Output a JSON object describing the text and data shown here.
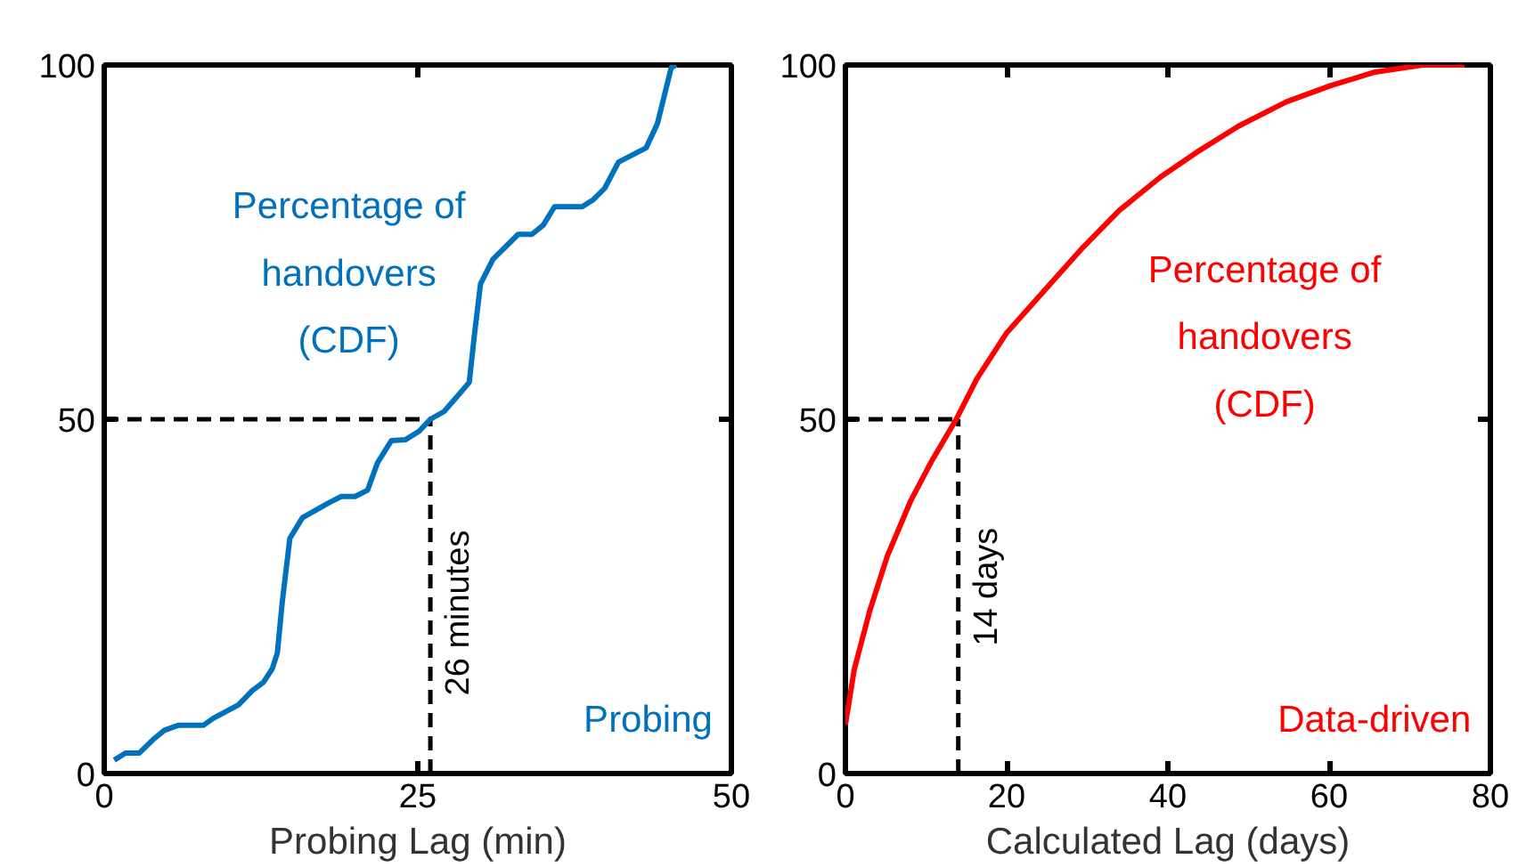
{
  "chart_data": [
    {
      "type": "line",
      "xlabel": "Probing Lag (min)",
      "xlim": [
        0,
        50
      ],
      "xticks": [
        0,
        25,
        50
      ],
      "ylim": [
        0,
        100
      ],
      "yticks": [
        0,
        50,
        100
      ],
      "series": [
        {
          "name": "Percentage of handovers (CDF)",
          "color": "#0072bd",
          "x": [
            0.8,
            1.7,
            2.8,
            3.9,
            4.8,
            5.9,
            7.9,
            8.7,
            10.7,
            11.8,
            12.7,
            13.4,
            13.8,
            14.2,
            14.8,
            15.8,
            16.9,
            18,
            18.9,
            20,
            21,
            21.8,
            22.9,
            24,
            25.1,
            26,
            27.1,
            29.1,
            29.5,
            30,
            31,
            33,
            34.1,
            35,
            35.9,
            38.1,
            39,
            39.9,
            41,
            43.2,
            44.1,
            45.2,
            45.6
          ],
          "values": [
            1.9,
            2.9,
            2.9,
            4.8,
            6.1,
            6.8,
            6.8,
            7.8,
            9.7,
            11.7,
            12.9,
            14.8,
            17,
            24.3,
            33.2,
            36.1,
            37.2,
            38.3,
            39.1,
            39.1,
            40,
            43.9,
            47,
            47.1,
            48.3,
            50,
            51.1,
            55.2,
            61.7,
            69.1,
            72.6,
            76.1,
            76.1,
            77.4,
            80,
            80,
            81,
            82.6,
            86.3,
            88.3,
            91.7,
            99.6,
            100
          ]
        }
      ],
      "annotations": [
        "Probing"
      ],
      "ref_lines": [
        {
          "axis": "y",
          "value": 50,
          "label": null,
          "color": "#000000",
          "line_style": "dashed"
        },
        {
          "axis": "x",
          "value": 26,
          "label": "26 minutes",
          "color": "#000000",
          "line_style": "dashed"
        }
      ]
    },
    {
      "type": "line",
      "xlabel": "Calculated Lag (days)",
      "xlim": [
        0,
        80
      ],
      "xticks": [
        0,
        20,
        40,
        60,
        80
      ],
      "ylim": [
        0,
        100
      ],
      "yticks": [
        0,
        50,
        100
      ],
      "series": [
        {
          "name": "Percentage of handovers (CDF)",
          "color": "#ff0000",
          "x": [
            0,
            1.1,
            3,
            5.2,
            8.1,
            10.7,
            13.7,
            16.3,
            20,
            24.4,
            29.5,
            34,
            39.1,
            43.6,
            48.8,
            54.7,
            60.2,
            65.7,
            71.6,
            76.8
          ],
          "values": [
            6.9,
            14.7,
            22.9,
            30.7,
            38.5,
            44.1,
            49.9,
            55.7,
            62.2,
            67.8,
            74.3,
            79.5,
            84.2,
            87.7,
            91.4,
            94.8,
            97.1,
            99,
            100,
            100
          ]
        }
      ],
      "annotations": [
        "Data-driven"
      ],
      "ref_lines": [
        {
          "axis": "y",
          "value": 50,
          "label": null,
          "color": "#000000",
          "line_style": "dashed"
        },
        {
          "axis": "x",
          "value": 14,
          "label": "14 days",
          "color": "#000000",
          "line_style": "dashed"
        }
      ]
    }
  ]
}
